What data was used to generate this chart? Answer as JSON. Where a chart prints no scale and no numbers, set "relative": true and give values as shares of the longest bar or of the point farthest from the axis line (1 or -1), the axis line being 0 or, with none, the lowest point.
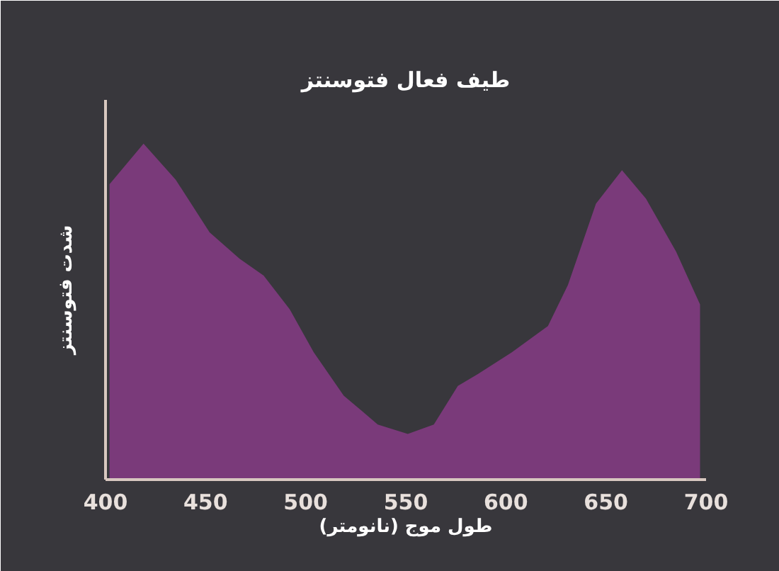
{
  "chart_data": {
    "type": "area",
    "title": "طیف فعال فتوسنتز",
    "xlabel": "طول موج (نانومتر)",
    "ylabel": "شدت فتوسنتز",
    "relative": true,
    "x": [
      402,
      419,
      435,
      452,
      467,
      479,
      492,
      504,
      519,
      536,
      551,
      564,
      576,
      586,
      603,
      621,
      631,
      645,
      658,
      670,
      685,
      697
    ],
    "values": [
      0.879,
      1.0,
      0.893,
      0.736,
      0.657,
      0.607,
      0.507,
      0.379,
      0.25,
      0.164,
      0.136,
      0.164,
      0.279,
      0.314,
      0.379,
      0.457,
      0.579,
      0.821,
      0.921,
      0.836,
      0.679,
      0.521
    ],
    "color": "#7a3a7a",
    "xlim": [
      400,
      700
    ],
    "xticks": [
      400,
      450,
      500,
      550,
      600,
      650,
      700
    ],
    "grid": false
  }
}
